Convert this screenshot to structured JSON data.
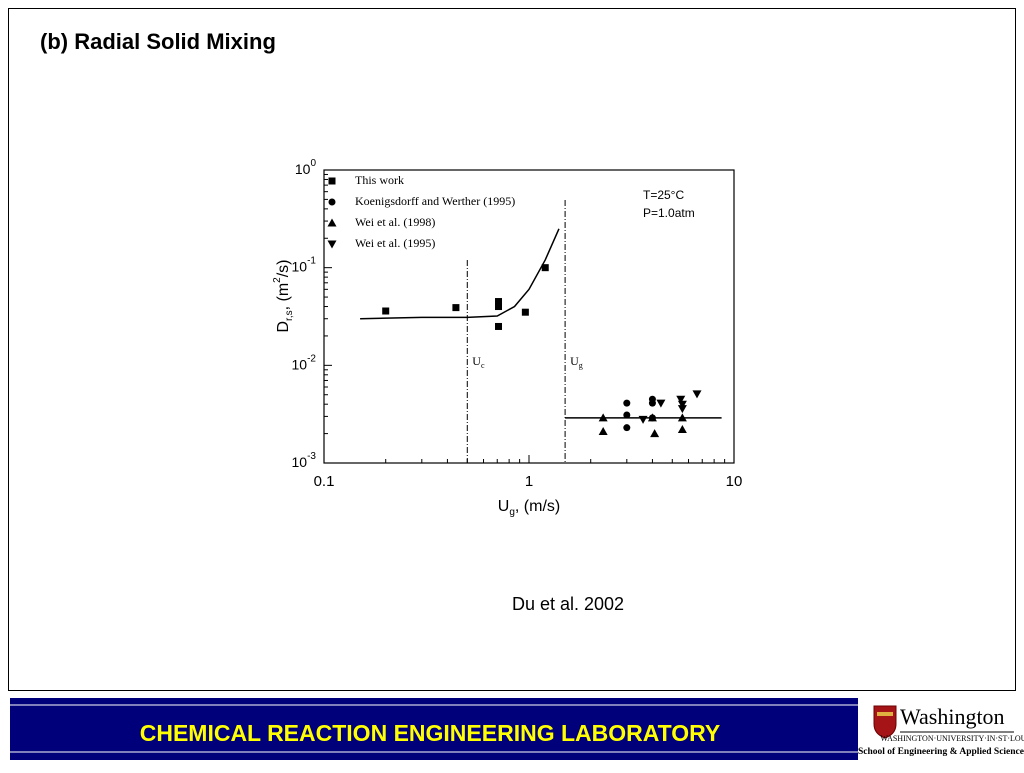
{
  "slide_title": "(b) Radial Solid Mixing",
  "caption": "Du et al. 2002",
  "footer": {
    "lab": "CHEMICAL  REACTION  ENGINEERING  LABORATORY",
    "logo_name": "Washington",
    "logo_university": "WASHINGTON·UNIVERSITY·IN·ST·LOUIS",
    "logo_school": "School of Engineering & Applied Science"
  },
  "chart_data": {
    "type": "scatter",
    "log_x": true,
    "log_y": true,
    "xlabel": {
      "main": "U",
      "sub": "g",
      "rest": ", (m/s)"
    },
    "ylabel": {
      "main": "D",
      "sub": "r,s",
      "rest": ", (m",
      "sup": "2",
      "end": "/s)"
    },
    "xlim": [
      0.1,
      10
    ],
    "xticks": [
      0.1,
      1,
      10
    ],
    "ylim": [
      0.001,
      1
    ],
    "yticks": [
      {
        "value": 0.001,
        "label": "10",
        "exp": "-3"
      },
      {
        "value": 0.01,
        "label": "10",
        "exp": "-2"
      },
      {
        "value": 0.1,
        "label": "10",
        "exp": "-1"
      },
      {
        "value": 1,
        "label": "10",
        "exp": "0"
      }
    ],
    "legend": "upper left",
    "annotations": [
      "T=25°C",
      "P=1.0atm"
    ],
    "vlines": [
      {
        "x": 0.5,
        "label": "U",
        "sub": "c"
      },
      {
        "x": 1.5,
        "label": "U",
        "sub": "g"
      }
    ],
    "series": [
      {
        "name": "This work",
        "marker": "square",
        "color": "#000000",
        "x": [
          0.2,
          0.44,
          0.71,
          0.71,
          0.71,
          0.96,
          1.2
        ],
        "values": [
          0.036,
          0.039,
          0.045,
          0.04,
          0.025,
          0.035,
          0.1
        ]
      },
      {
        "name": "Koenigsdorff and Werther (1995)",
        "marker": "circle",
        "color": "#000000",
        "x": [
          3.0,
          3.0,
          3.0,
          4.0,
          4.0,
          4.0
        ],
        "values": [
          0.0041,
          0.0031,
          0.0023,
          0.0045,
          0.0041,
          0.0029
        ]
      },
      {
        "name": "Wei et al. (1998)",
        "marker": "triangle-up",
        "color": "#000000",
        "x": [
          2.3,
          2.3,
          4.0,
          4.1,
          5.6,
          5.6
        ],
        "values": [
          0.0029,
          0.0021,
          0.0029,
          0.002,
          0.0029,
          0.0022
        ]
      },
      {
        "name": "Wei et al. (1995)",
        "marker": "triangle-down",
        "color": "#000000",
        "x": [
          3.6,
          4.4,
          5.5,
          5.6,
          5.6,
          6.6
        ],
        "values": [
          0.0028,
          0.0041,
          0.0045,
          0.0036,
          0.004,
          0.0051
        ]
      }
    ],
    "fits": [
      {
        "x": [
          0.15,
          0.3,
          0.5,
          0.7,
          0.85,
          1.0,
          1.2,
          1.4
        ],
        "values": [
          0.03,
          0.031,
          0.031,
          0.032,
          0.04,
          0.06,
          0.12,
          0.25
        ]
      },
      {
        "x": [
          1.5,
          8.7
        ],
        "values": [
          0.0029,
          0.0029
        ]
      }
    ]
  }
}
